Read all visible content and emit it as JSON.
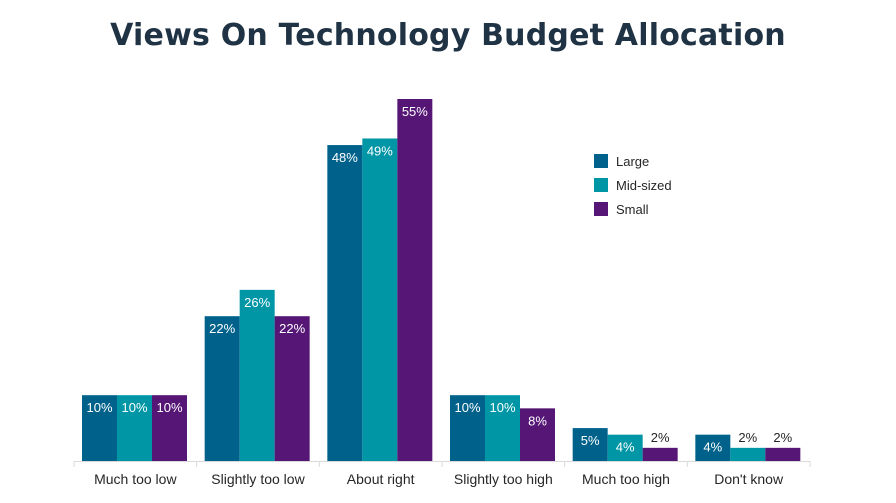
{
  "chart_data": {
    "type": "bar",
    "title": "Views On Technology Budget Allocation",
    "xlabel": "",
    "ylabel": "",
    "ylim": [
      0,
      55
    ],
    "grid": false,
    "legend_position": "top-right",
    "categories": [
      "Much too low",
      "Slightly too low",
      "About right",
      "Slightly too high",
      "Much too high",
      "Don't know"
    ],
    "series": [
      {
        "name": "Large",
        "color": "#00628b",
        "values": [
          10,
          22,
          48,
          10,
          5,
          4
        ],
        "labels": [
          "10%",
          "22%",
          "48%",
          "10%",
          "5%",
          "4%"
        ]
      },
      {
        "name": "Mid-sized",
        "color": "#0096a6",
        "values": [
          10,
          26,
          49,
          10,
          4,
          2
        ],
        "labels": [
          "10%",
          "26%",
          "49%",
          "10%",
          "4%",
          "2%"
        ]
      },
      {
        "name": "Small",
        "color": "#561676",
        "values": [
          10,
          22,
          55,
          8,
          2,
          2
        ],
        "labels": [
          "10%",
          "22%",
          "55%",
          "8%",
          "2%",
          "2%"
        ]
      }
    ],
    "label_color_inside": "#ffffff",
    "label_color_outside": "#262626",
    "axis_color": "#d9d9d9"
  }
}
